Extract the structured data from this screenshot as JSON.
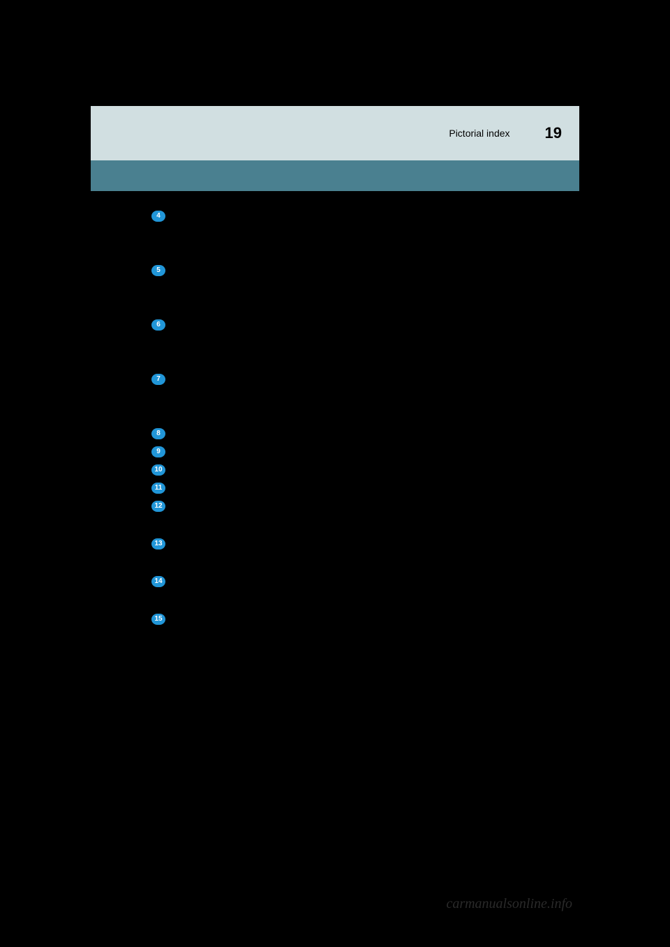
{
  "header": {
    "section_title": "Pictorial index",
    "page_number": "19"
  },
  "index_items": [
    {
      "number": "4",
      "gap_after": 62
    },
    {
      "number": "5",
      "gap_after": 62
    },
    {
      "number": "6",
      "gap_after": 62
    },
    {
      "number": "7",
      "gap_after": 62
    },
    {
      "number": "8",
      "gap_after": 10
    },
    {
      "number": "9",
      "gap_after": 10
    },
    {
      "number": "10",
      "gap_after": 10
    },
    {
      "number": "11",
      "gap_after": 10
    },
    {
      "number": "12",
      "gap_after": 38
    },
    {
      "number": "13",
      "gap_after": 38
    },
    {
      "number": "14",
      "gap_after": 38
    },
    {
      "number": "15",
      "gap_after": 0
    }
  ],
  "watermark": "carmanualsonline.info",
  "colors": {
    "background": "#000000",
    "header_background": "#d1dfe1",
    "teal_bar": "#4a8090",
    "index_badge": "#2196d8",
    "badge_text": "#ffffff",
    "header_text": "#000000",
    "watermark_text": "#2a2a2a"
  }
}
